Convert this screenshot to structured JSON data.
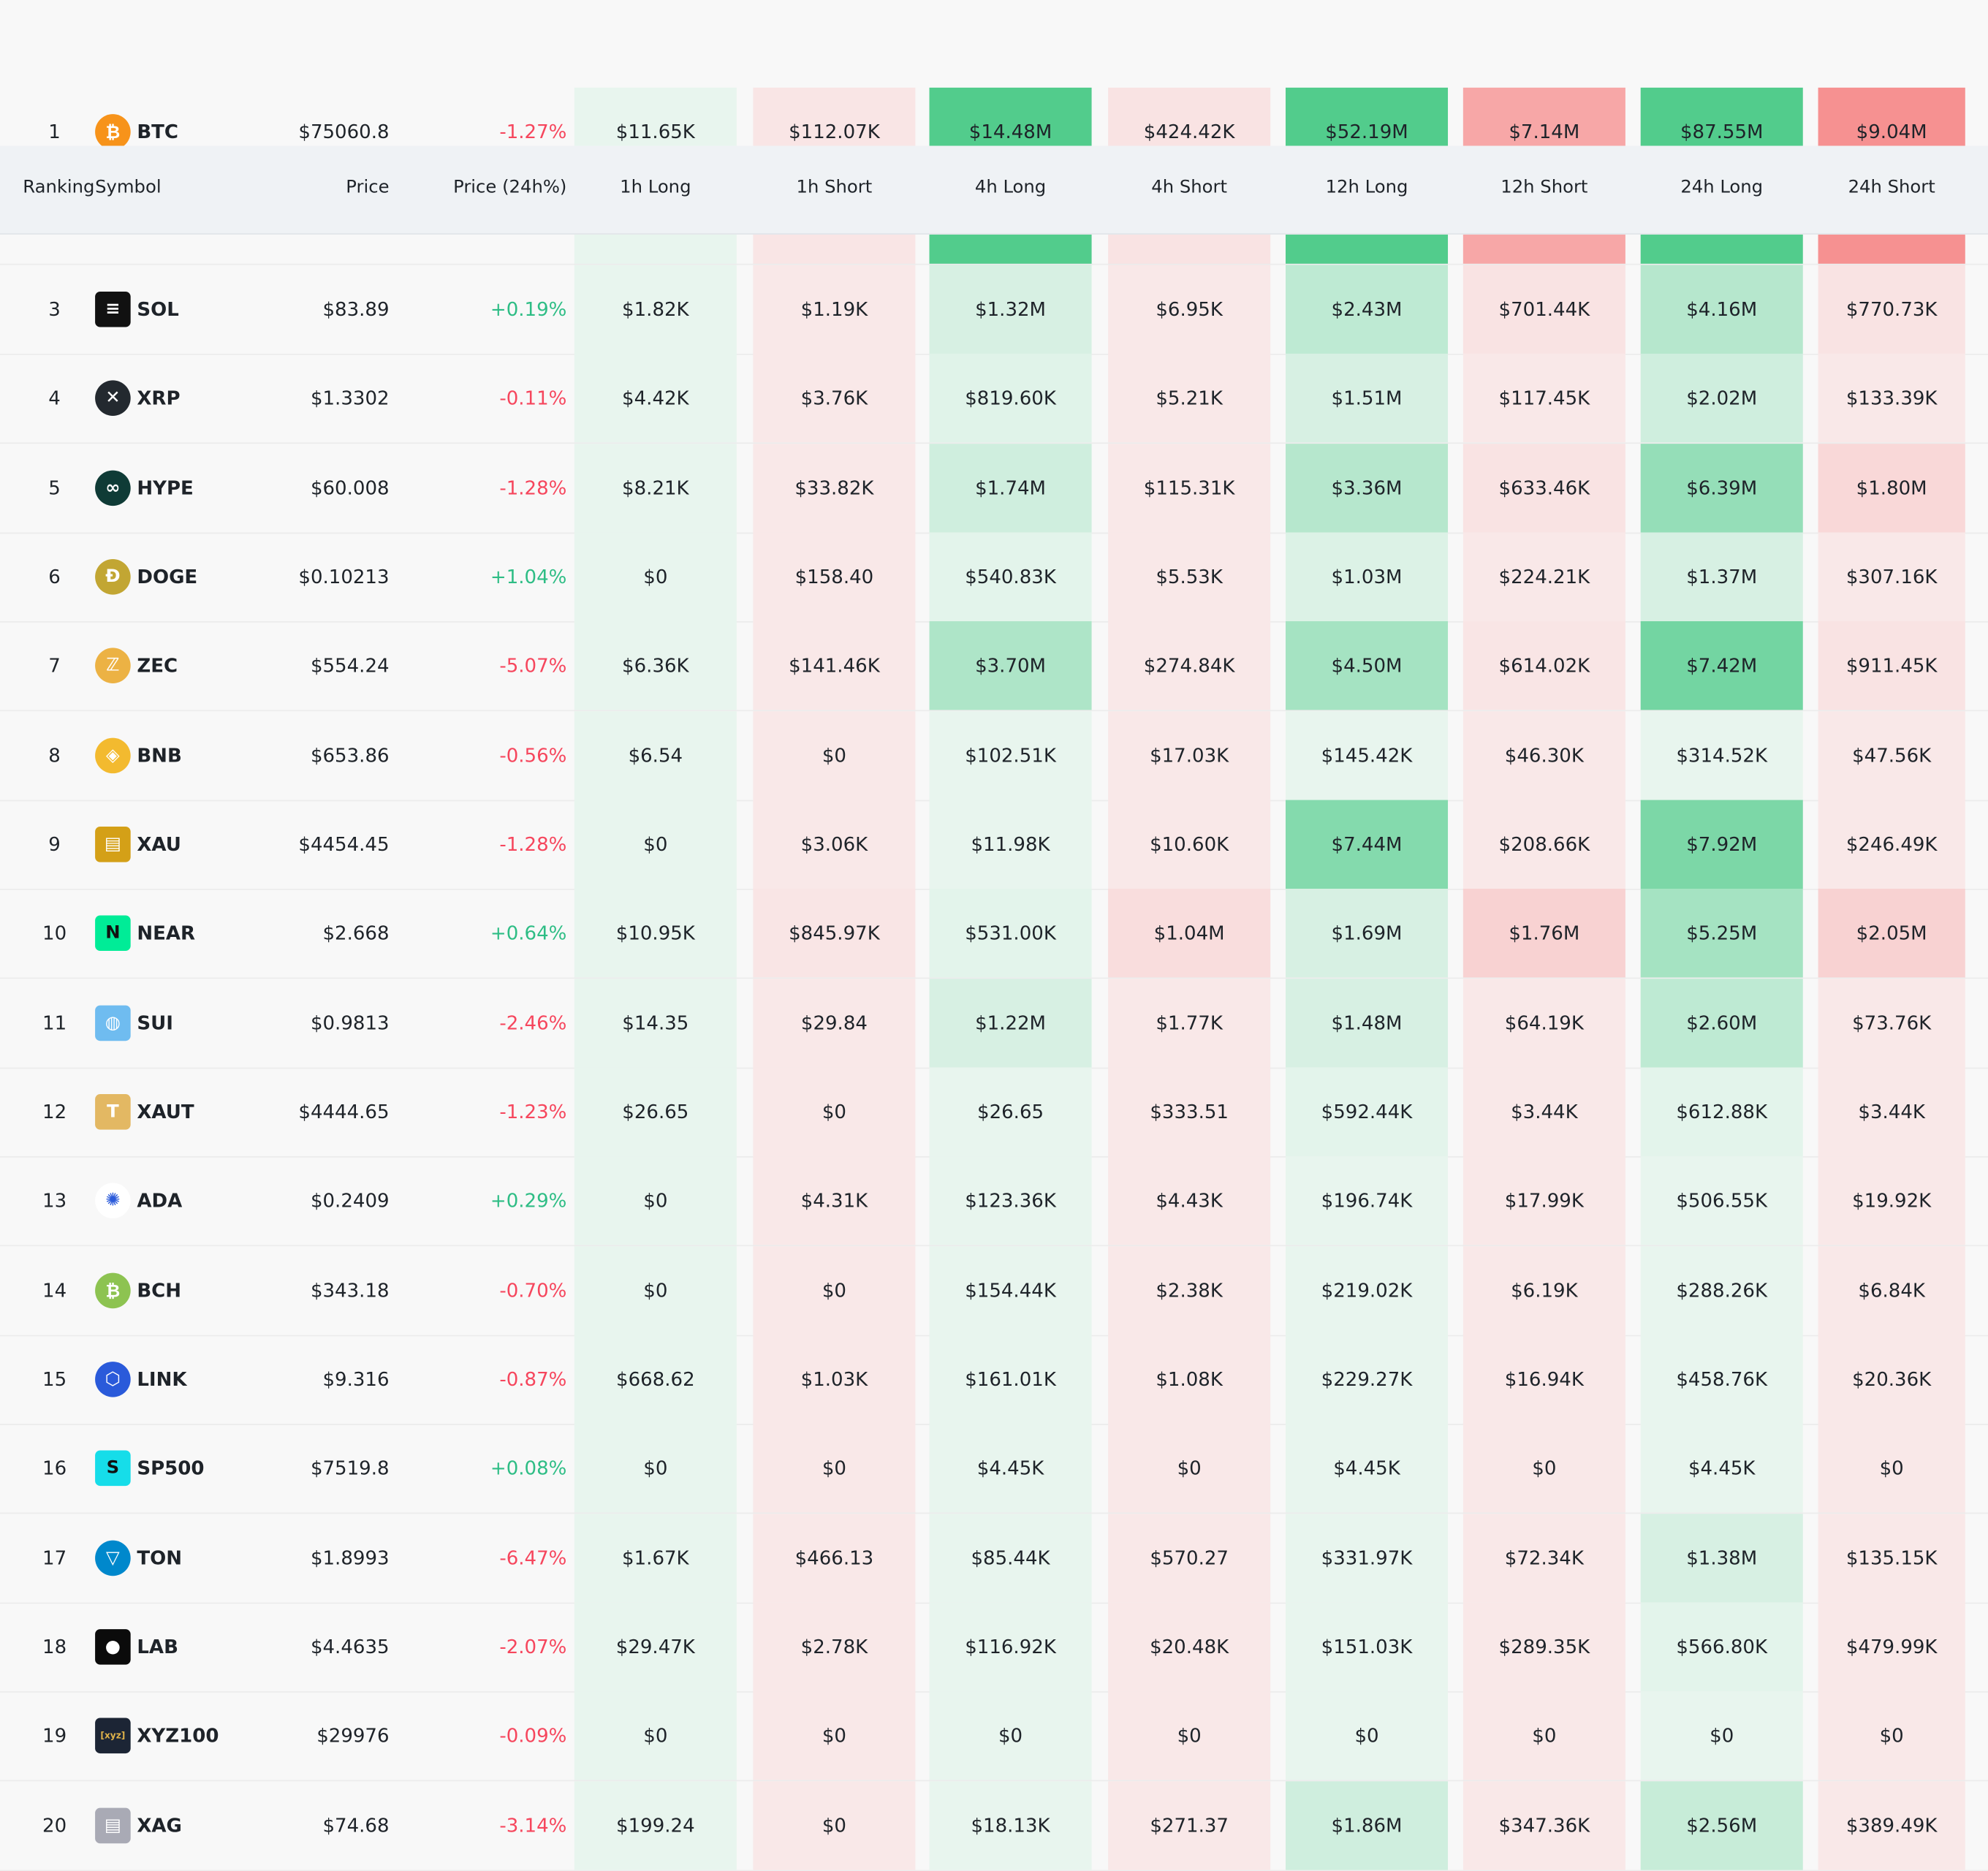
{
  "columns": {
    "ranking": "Ranking",
    "symbol": "Symbol",
    "price": "Price",
    "change": "Price (24h%)",
    "h1_long": "1h Long",
    "h1_short": "1h Short",
    "h4_long": "4h Long",
    "h4_short": "4h Short",
    "h12_long": "12h Long",
    "h12_short": "12h Short",
    "h24_long": "24h Long",
    "h24_short": "24h Short"
  },
  "colors": {
    "up": "#2ebd85",
    "down": "#f6465d",
    "long_light": "#e8f5ee",
    "long_strong": "#52cc8c",
    "short_light": "#f9e8e8",
    "short_strong": "#f68686"
  },
  "rows": [
    {
      "rank": "1",
      "symbol": "BTC",
      "icon": "bitcoin-icon",
      "icon_color": "#f7931a",
      "price": "$75060.8",
      "change": "-1.27%",
      "dir": "down",
      "values": [
        "$11.65K",
        "$112.07K",
        "$14.48M",
        "$424.42K",
        "$52.19M",
        "$7.14M",
        "$87.55M",
        "$9.04M"
      ],
      "intensity": [
        0.05,
        0.08,
        0.95,
        0.1,
        0.95,
        0.65,
        0.95,
        0.85
      ]
    },
    {
      "rank": "3",
      "symbol": "SOL",
      "icon": "solana-icon",
      "icon_color": "#111111",
      "price": "$83.89",
      "change": "+0.19%",
      "dir": "up",
      "values": [
        "$1.82K",
        "$1.19K",
        "$1.32M",
        "$6.95K",
        "$2.43M",
        "$701.44K",
        "$4.16M",
        "$770.73K"
      ],
      "intensity": [
        0.05,
        0.05,
        0.15,
        0.05,
        0.3,
        0.1,
        0.35,
        0.1
      ]
    },
    {
      "rank": "4",
      "symbol": "XRP",
      "icon": "xrp-icon",
      "icon_color": "#23292f",
      "price": "$1.3302",
      "change": "-0.11%",
      "dir": "down",
      "values": [
        "$4.42K",
        "$3.76K",
        "$819.60K",
        "$5.21K",
        "$1.51M",
        "$117.45K",
        "$2.02M",
        "$133.39K"
      ],
      "intensity": [
        0.05,
        0.05,
        0.1,
        0.05,
        0.15,
        0.05,
        0.2,
        0.05
      ]
    },
    {
      "rank": "5",
      "symbol": "HYPE",
      "icon": "hyperliquid-icon",
      "icon_color": "#0f3b36",
      "price": "$60.008",
      "change": "-1.28%",
      "dir": "down",
      "values": [
        "$8.21K",
        "$33.82K",
        "$1.74M",
        "$115.31K",
        "$3.36M",
        "$633.46K",
        "$6.39M",
        "$1.80M"
      ],
      "intensity": [
        0.05,
        0.05,
        0.2,
        0.05,
        0.35,
        0.1,
        0.55,
        0.2
      ]
    },
    {
      "rank": "6",
      "symbol": "DOGE",
      "icon": "dogecoin-icon",
      "icon_color": "#c2a633",
      "price": "$0.10213",
      "change": "+1.04%",
      "dir": "up",
      "values": [
        "$0",
        "$158.40",
        "$540.83K",
        "$5.53K",
        "$1.03M",
        "$224.21K",
        "$1.37M",
        "$307.16K"
      ],
      "intensity": [
        0.05,
        0.05,
        0.08,
        0.05,
        0.12,
        0.05,
        0.15,
        0.05
      ]
    },
    {
      "rank": "7",
      "symbol": "ZEC",
      "icon": "zcash-icon",
      "icon_color": "#ecb244",
      "price": "$554.24",
      "change": "-5.07%",
      "dir": "down",
      "values": [
        "$6.36K",
        "$141.46K",
        "$3.70M",
        "$274.84K",
        "$4.50M",
        "$614.02K",
        "$7.42M",
        "$911.45K"
      ],
      "intensity": [
        0.05,
        0.05,
        0.4,
        0.05,
        0.45,
        0.08,
        0.75,
        0.1
      ]
    },
    {
      "rank": "8",
      "symbol": "BNB",
      "icon": "bnb-icon",
      "icon_color": "#f3ba2f",
      "price": "$653.86",
      "change": "-0.56%",
      "dir": "down",
      "values": [
        "$6.54",
        "$0",
        "$102.51K",
        "$17.03K",
        "$145.42K",
        "$46.30K",
        "$314.52K",
        "$47.56K"
      ],
      "intensity": [
        0.05,
        0.05,
        0.05,
        0.05,
        0.05,
        0.05,
        0.05,
        0.05
      ]
    },
    {
      "rank": "9",
      "symbol": "XAU",
      "icon": "gold-icon",
      "icon_color": "#d4a017",
      "price": "$4454.45",
      "change": "-1.28%",
      "dir": "down",
      "values": [
        "$0",
        "$3.06K",
        "$11.98K",
        "$10.60K",
        "$7.44M",
        "$208.66K",
        "$7.92M",
        "$246.49K"
      ],
      "intensity": [
        0.05,
        0.05,
        0.05,
        0.05,
        0.65,
        0.05,
        0.7,
        0.05
      ]
    },
    {
      "rank": "10",
      "symbol": "NEAR",
      "icon": "near-icon",
      "icon_color": "#00ec97",
      "price": "$2.668",
      "change": "+0.64%",
      "dir": "up",
      "values": [
        "$10.95K",
        "$845.97K",
        "$531.00K",
        "$1.04M",
        "$1.69M",
        "$1.76M",
        "$5.25M",
        "$2.05M"
      ],
      "intensity": [
        0.05,
        0.08,
        0.08,
        0.15,
        0.15,
        0.25,
        0.45,
        0.25
      ]
    },
    {
      "rank": "11",
      "symbol": "SUI",
      "icon": "sui-icon",
      "icon_color": "#6fbcf0",
      "price": "$0.9813",
      "change": "-2.46%",
      "dir": "down",
      "values": [
        "$14.35",
        "$29.84",
        "$1.22M",
        "$1.77K",
        "$1.48M",
        "$64.19K",
        "$2.60M",
        "$73.76K"
      ],
      "intensity": [
        0.05,
        0.05,
        0.15,
        0.05,
        0.15,
        0.05,
        0.3,
        0.05
      ]
    },
    {
      "rank": "12",
      "symbol": "XAUT",
      "icon": "tether-gold-icon",
      "icon_color": "#e3b863",
      "price": "$4444.65",
      "change": "-1.23%",
      "dir": "down",
      "values": [
        "$26.65",
        "$0",
        "$26.65",
        "$333.51",
        "$592.44K",
        "$3.44K",
        "$612.88K",
        "$3.44K"
      ],
      "intensity": [
        0.05,
        0.05,
        0.05,
        0.05,
        0.08,
        0.05,
        0.08,
        0.05
      ]
    },
    {
      "rank": "13",
      "symbol": "ADA",
      "icon": "cardano-icon",
      "icon_color": "#ffffff",
      "price": "$0.2409",
      "change": "+0.29%",
      "dir": "up",
      "values": [
        "$0",
        "$4.31K",
        "$123.36K",
        "$4.43K",
        "$196.74K",
        "$17.99K",
        "$506.55K",
        "$19.92K"
      ],
      "intensity": [
        0.05,
        0.05,
        0.05,
        0.05,
        0.05,
        0.05,
        0.05,
        0.05
      ]
    },
    {
      "rank": "14",
      "symbol": "BCH",
      "icon": "bitcoin-cash-icon",
      "icon_color": "#8dc351",
      "price": "$343.18",
      "change": "-0.70%",
      "dir": "down",
      "values": [
        "$0",
        "$0",
        "$154.44K",
        "$2.38K",
        "$219.02K",
        "$6.19K",
        "$288.26K",
        "$6.84K"
      ],
      "intensity": [
        0.05,
        0.05,
        0.05,
        0.05,
        0.05,
        0.05,
        0.05,
        0.05
      ]
    },
    {
      "rank": "15",
      "symbol": "LINK",
      "icon": "chainlink-icon",
      "icon_color": "#2a5ada",
      "price": "$9.316",
      "change": "-0.87%",
      "dir": "down",
      "values": [
        "$668.62",
        "$1.03K",
        "$161.01K",
        "$1.08K",
        "$229.27K",
        "$16.94K",
        "$458.76K",
        "$20.36K"
      ],
      "intensity": [
        0.05,
        0.05,
        0.05,
        0.05,
        0.05,
        0.05,
        0.05,
        0.05
      ]
    },
    {
      "rank": "16",
      "symbol": "SP500",
      "icon": "sp500-icon",
      "icon_color": "#16dde9",
      "price": "$7519.8",
      "change": "+0.08%",
      "dir": "up",
      "values": [
        "$0",
        "$0",
        "$4.45K",
        "$0",
        "$4.45K",
        "$0",
        "$4.45K",
        "$0"
      ],
      "intensity": [
        0.05,
        0.05,
        0.05,
        0.05,
        0.05,
        0.05,
        0.05,
        0.05
      ]
    },
    {
      "rank": "17",
      "symbol": "TON",
      "icon": "toncoin-icon",
      "icon_color": "#0088cc",
      "price": "$1.8993",
      "change": "-6.47%",
      "dir": "down",
      "values": [
        "$1.67K",
        "$466.13",
        "$85.44K",
        "$570.27",
        "$331.97K",
        "$72.34K",
        "$1.38M",
        "$135.15K"
      ],
      "intensity": [
        0.05,
        0.05,
        0.05,
        0.05,
        0.05,
        0.05,
        0.15,
        0.05
      ]
    },
    {
      "rank": "18",
      "symbol": "LAB",
      "icon": "lab-icon",
      "icon_color": "#0b0b0b",
      "price": "$4.4635",
      "change": "-2.07%",
      "dir": "down",
      "values": [
        "$29.47K",
        "$2.78K",
        "$116.92K",
        "$20.48K",
        "$151.03K",
        "$289.35K",
        "$566.80K",
        "$479.99K"
      ],
      "intensity": [
        0.05,
        0.05,
        0.05,
        0.05,
        0.05,
        0.05,
        0.08,
        0.05
      ]
    },
    {
      "rank": "19",
      "symbol": "XYZ100",
      "icon": "xyz-icon",
      "icon_color": "#1c2535",
      "price": "$29976",
      "change": "-0.09%",
      "dir": "down",
      "values": [
        "$0",
        "$0",
        "$0",
        "$0",
        "$0",
        "$0",
        "$0",
        "$0"
      ],
      "intensity": [
        0.05,
        0.05,
        0.05,
        0.05,
        0.05,
        0.05,
        0.05,
        0.05
      ]
    },
    {
      "rank": "20",
      "symbol": "XAG",
      "icon": "silver-icon",
      "icon_color": "#a9aab5",
      "price": "$74.68",
      "change": "-3.14%",
      "dir": "down",
      "values": [
        "$199.24",
        "$0",
        "$18.13K",
        "$271.37",
        "$1.86M",
        "$347.36K",
        "$2.56M",
        "$389.49K"
      ],
      "intensity": [
        0.05,
        0.05,
        0.05,
        0.05,
        0.2,
        0.05,
        0.25,
        0.05
      ]
    }
  ],
  "peek_row_intensity": [
    0.05,
    0.08,
    0.95,
    0.1,
    0.95,
    0.65,
    0.95,
    0.85
  ],
  "glyphs": {
    "bitcoin-icon": "₿",
    "solana-icon": "≡",
    "xrp-icon": "✕",
    "hyperliquid-icon": "∞",
    "dogecoin-icon": "Ð",
    "zcash-icon": "ℤ",
    "bnb-icon": "◈",
    "gold-icon": "▤",
    "near-icon": "N",
    "sui-icon": "◍",
    "tether-gold-icon": "T",
    "cardano-icon": "✺",
    "bitcoin-cash-icon": "₿",
    "chainlink-icon": "⬡",
    "sp500-icon": "S",
    "toncoin-icon": "▽",
    "lab-icon": "●",
    "xyz-icon": "[xyz]",
    "silver-icon": "▤"
  }
}
